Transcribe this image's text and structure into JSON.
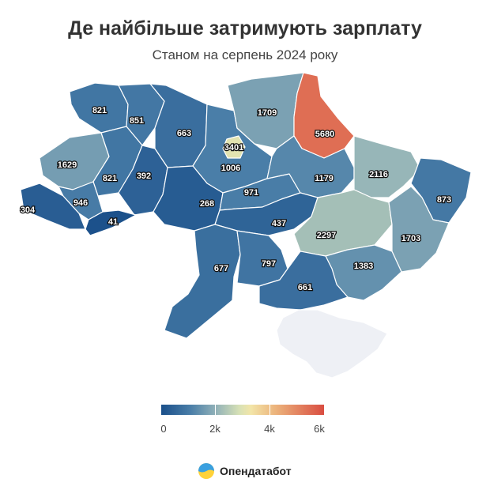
{
  "header": {
    "title": "Де найбільше затримують зарплату",
    "subtitle": "Станом на серпень 2024 року"
  },
  "map": {
    "regions": [
      {
        "id": "volyn",
        "value": 821
      },
      {
        "id": "rivne",
        "value": 851
      },
      {
        "id": "zhytomyr",
        "value": 663
      },
      {
        "id": "kyiv_oblast",
        "value": 1006
      },
      {
        "id": "kyiv_city",
        "value": 3401
      },
      {
        "id": "chernihiv",
        "value": 1709
      },
      {
        "id": "sumy",
        "value": 5680
      },
      {
        "id": "lviv",
        "value": 1629
      },
      {
        "id": "ternopil",
        "value": 821
      },
      {
        "id": "khmelnytskyi",
        "value": 392
      },
      {
        "id": "zakarpattia",
        "value": 304
      },
      {
        "id": "ivano_frankivsk",
        "value": 946
      },
      {
        "id": "chernivtsi",
        "value": 41
      },
      {
        "id": "vinnytsia",
        "value": 268
      },
      {
        "id": "cherkasy",
        "value": 971
      },
      {
        "id": "poltava",
        "value": 1179
      },
      {
        "id": "kharkiv",
        "value": 2116
      },
      {
        "id": "luhansk",
        "value": 873
      },
      {
        "id": "kirovohrad",
        "value": 437
      },
      {
        "id": "dnipropetrovsk",
        "value": 2297
      },
      {
        "id": "donetsk",
        "value": 1703
      },
      {
        "id": "zaporizhzhia",
        "value": 1383
      },
      {
        "id": "odesa",
        "value": 677
      },
      {
        "id": "mykolaiv",
        "value": 797
      },
      {
        "id": "kherson",
        "value": 661
      },
      {
        "id": "crimea",
        "value": null
      }
    ],
    "colors": {
      "nodata": "#eef0f5",
      "scale": [
        "#1a4f8a",
        "#4a7ea8",
        "#8fb0b8",
        "#d7e1b6",
        "#f2e5a8",
        "#ecb47c",
        "#d94d41"
      ]
    }
  },
  "legend": {
    "ticks": [
      "0",
      "2k",
      "4k",
      "6k"
    ],
    "min": 0,
    "max": 6000
  },
  "brand": {
    "name": "Опендатабот"
  }
}
